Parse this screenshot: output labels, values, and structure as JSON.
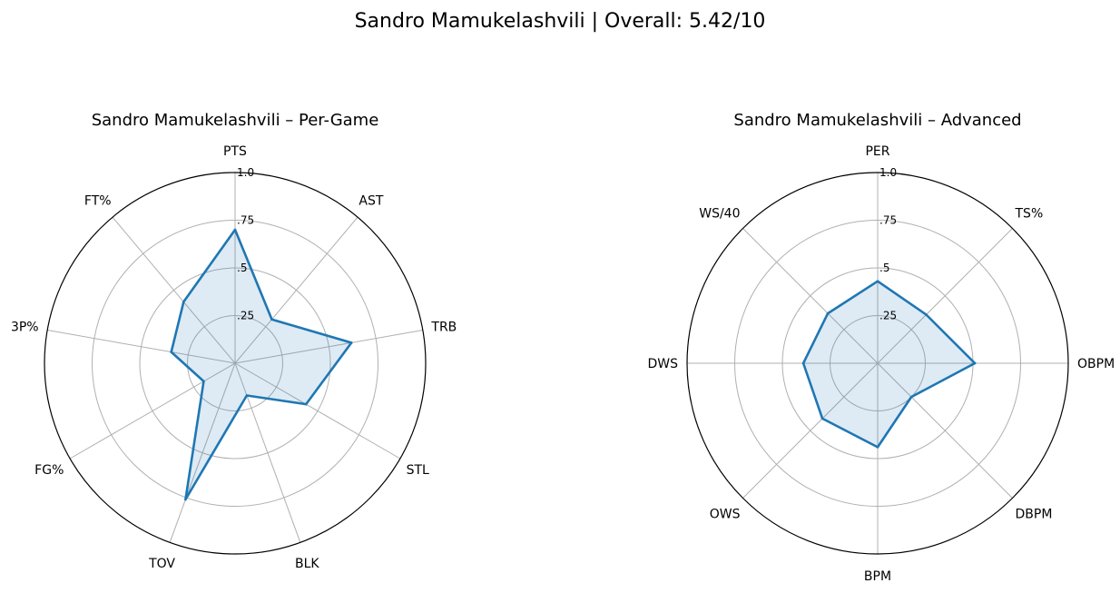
{
  "figure": {
    "title": "Sandro Mamukelashvili | Overall: 5.42/10"
  },
  "colors": {
    "line": "#1f77b4",
    "fill": "#1f77b4",
    "fill_opacity": 0.15
  },
  "chart_data": [
    {
      "type": "radar",
      "title": "Sandro Mamukelashvili – Per-Game",
      "categories": [
        "PTS",
        "AST",
        "TRB",
        "STL",
        "BLK",
        "TOV",
        "FG%",
        "3P%",
        "FT%"
      ],
      "values": [
        0.7,
        0.3,
        0.62,
        0.43,
        0.18,
        0.76,
        0.19,
        0.34,
        0.42
      ],
      "rlim": [
        0,
        1
      ],
      "rticks": [
        0.25,
        0.5,
        0.75,
        1.0
      ],
      "rtick_labels": [
        ".25",
        ".5",
        ".75",
        "1.0"
      ],
      "grid": true
    },
    {
      "type": "radar",
      "title": "Sandro Mamukelashvili – Advanced",
      "categories": [
        "PER",
        "TS%",
        "OBPM",
        "DBPM",
        "BPM",
        "OWS",
        "DWS",
        "WS/40"
      ],
      "values": [
        0.43,
        0.36,
        0.51,
        0.25,
        0.44,
        0.41,
        0.39,
        0.37
      ],
      "rlim": [
        0,
        1
      ],
      "rticks": [
        0.25,
        0.5,
        0.75,
        1.0
      ],
      "rtick_labels": [
        ".25",
        ".5",
        ".75",
        "1.0"
      ],
      "grid": true
    }
  ]
}
